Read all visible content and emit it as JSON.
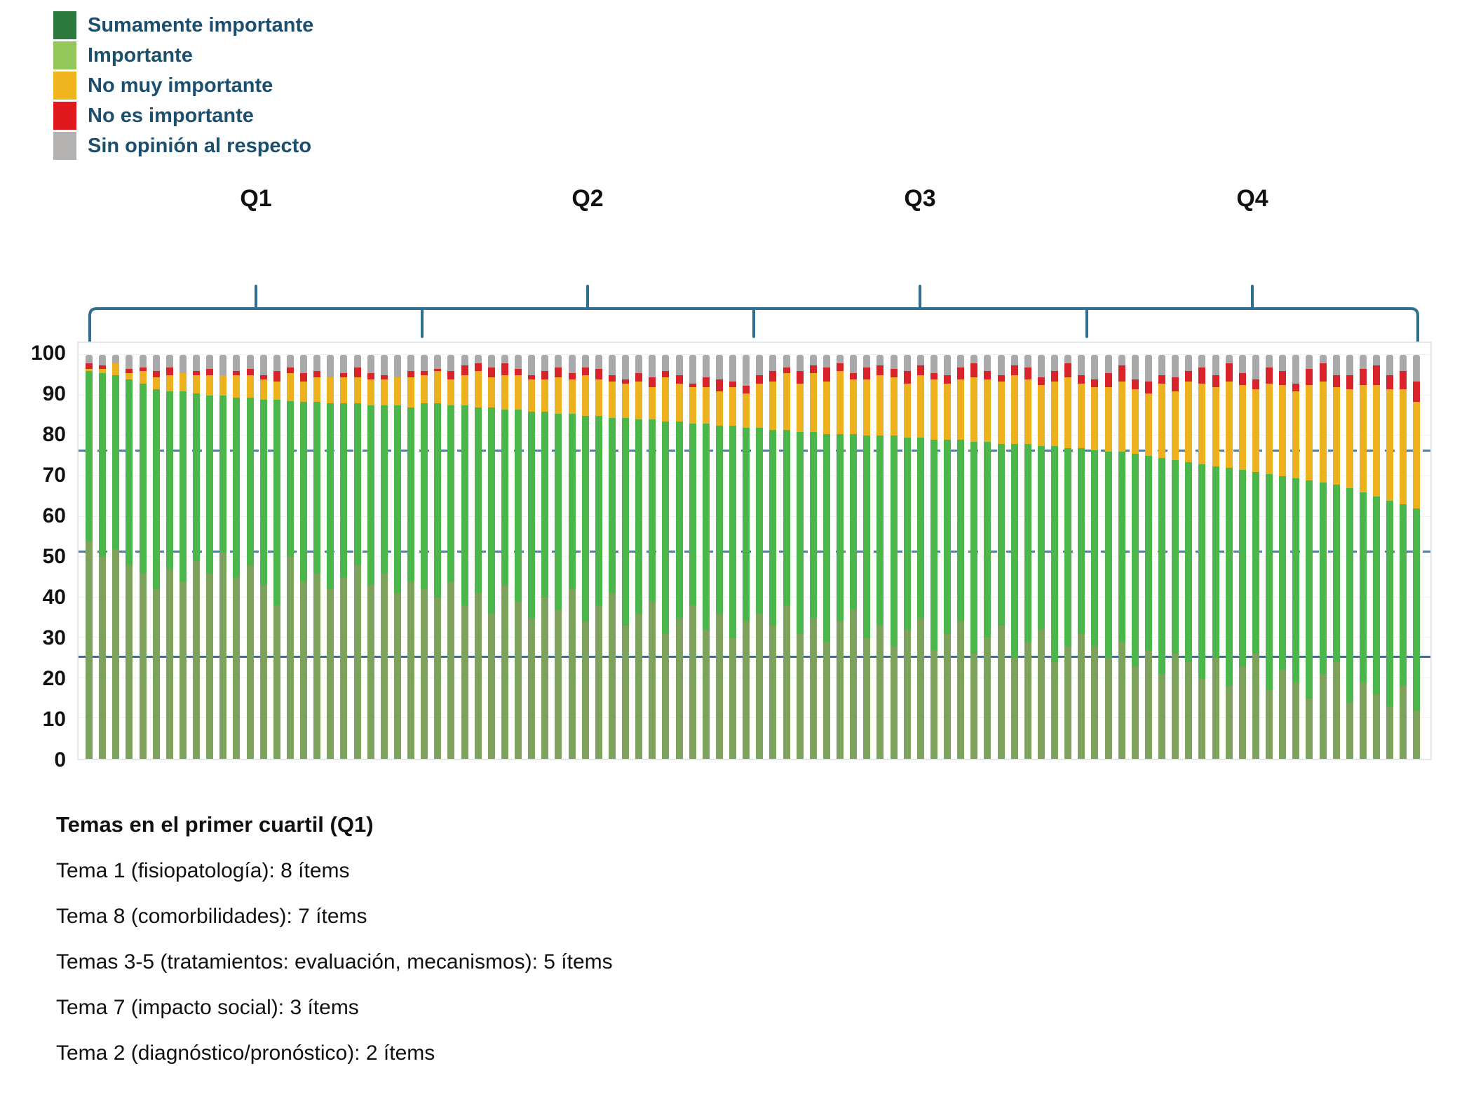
{
  "legend": {
    "items": [
      {
        "label": "Sumamente importante",
        "color": "#2c7a3d"
      },
      {
        "label": "Importante",
        "color": "#94c75a"
      },
      {
        "label": "No muy importante",
        "color": "#f0b41e"
      },
      {
        "label": "No es importante",
        "color": "#e1191f"
      },
      {
        "label": "Sin opinión al respecto",
        "color": "#b5b2b2"
      }
    ],
    "text_color": "#1c4e6e"
  },
  "quartile_labels": [
    "Q1",
    "Q2",
    "Q3",
    "Q4"
  ],
  "y_axis": {
    "ticks": [
      100,
      90,
      80,
      70,
      60,
      50,
      40,
      30,
      20,
      10,
      0
    ]
  },
  "chart_data": {
    "type": "bar",
    "stacked": true,
    "title": "",
    "xlabel": "",
    "ylabel": "",
    "ylim": [
      0,
      100
    ],
    "grid": true,
    "legend_position": "top-left",
    "series_order": [
      "Sumamente importante",
      "Importante",
      "No muy importante",
      "No es importante",
      "Sin opinión al respecto"
    ],
    "bar_colors": {
      "Sumamente importante": "#7da25b",
      "Importante": "#4bb649",
      "No muy importante": "#edb11f",
      "No es importante": "#d8232a",
      "Sin opinión al respecto": "#a9a9a9"
    },
    "reference_lines": [
      {
        "value": 76,
        "style": "dashed",
        "color": "#3a85c4"
      },
      {
        "value": 51,
        "style": "dashed",
        "color": "#3a85c4"
      },
      {
        "value": 25,
        "style": "solid",
        "color": "#2e6fb4"
      }
    ],
    "quartiles": [
      {
        "label": "Q1",
        "first_bar": 1,
        "last_bar": 25
      },
      {
        "label": "Q2",
        "first_bar": 26,
        "last_bar": 50
      },
      {
        "label": "Q3",
        "first_bar": 51,
        "last_bar": 75
      },
      {
        "label": "Q4",
        "first_bar": 76,
        "last_bar": 100
      }
    ],
    "bars": [
      [
        54,
        42,
        0.5,
        1.5,
        2
      ],
      [
        50,
        45.5,
        1,
        1,
        2.5
      ],
      [
        52,
        43,
        3,
        0,
        2
      ],
      [
        48,
        46,
        1.5,
        1,
        3.5
      ],
      [
        46,
        47,
        3,
        1,
        3
      ],
      [
        42,
        49.5,
        3,
        1.5,
        4
      ],
      [
        47,
        44,
        4,
        2,
        3
      ],
      [
        44,
        47,
        4.5,
        0,
        4.5
      ],
      [
        49,
        41.5,
        4.5,
        1,
        4
      ],
      [
        46,
        44,
        5,
        1.5,
        3.5
      ],
      [
        51,
        39,
        5,
        0,
        5
      ],
      [
        45,
        44.5,
        5.5,
        1,
        4
      ],
      [
        48,
        41.5,
        5.5,
        1.5,
        3.5
      ],
      [
        43,
        46,
        5,
        1,
        5
      ],
      [
        38,
        51,
        4.5,
        2.5,
        4
      ],
      [
        50,
        38.5,
        7,
        1.5,
        3
      ],
      [
        44,
        44.5,
        5,
        2,
        4.5
      ],
      [
        46,
        42.5,
        6,
        1.5,
        4
      ],
      [
        42,
        46,
        6.5,
        0,
        5.5
      ],
      [
        45,
        43,
        6.5,
        1,
        4.5
      ],
      [
        48,
        40,
        6.5,
        2.5,
        3
      ],
      [
        43,
        44.5,
        6.5,
        1.5,
        4.5
      ],
      [
        46,
        41.5,
        6.5,
        1,
        5
      ],
      [
        41,
        46.5,
        7,
        0,
        5.5
      ],
      [
        44,
        43,
        7.5,
        1.5,
        4
      ],
      [
        42,
        46,
        7,
        1,
        4
      ],
      [
        40,
        48,
        8,
        0.5,
        3.5
      ],
      [
        44,
        43.5,
        6.5,
        2,
        4
      ],
      [
        38,
        49.5,
        7.5,
        2.5,
        2.5
      ],
      [
        41,
        46,
        9,
        2,
        2
      ],
      [
        36,
        51,
        7.5,
        2.5,
        3
      ],
      [
        43,
        43.5,
        8.5,
        3,
        2
      ],
      [
        39,
        47.5,
        8.5,
        1.5,
        3.5
      ],
      [
        35,
        51,
        8,
        1,
        5
      ],
      [
        40,
        46,
        8,
        2,
        4
      ],
      [
        37,
        48.5,
        9,
        2.5,
        3
      ],
      [
        42,
        43.5,
        8.5,
        1.5,
        4.5
      ],
      [
        34,
        51,
        10,
        2,
        3
      ],
      [
        38,
        47,
        9,
        2.5,
        3.5
      ],
      [
        41,
        43.5,
        9,
        1.5,
        5
      ],
      [
        33,
        51.5,
        8.5,
        1,
        6
      ],
      [
        36,
        48,
        9.5,
        2,
        4.5
      ],
      [
        39,
        45,
        8,
        2.5,
        5.5
      ],
      [
        31,
        52.5,
        11,
        1.5,
        4
      ],
      [
        35,
        48.5,
        9.5,
        2,
        5
      ],
      [
        38,
        45,
        9,
        1,
        7
      ],
      [
        32,
        51,
        9,
        2.5,
        5.5
      ],
      [
        36,
        46.5,
        8.5,
        3,
        6
      ],
      [
        30,
        52.5,
        9.5,
        1.5,
        6.5
      ],
      [
        34,
        48,
        8.5,
        2,
        7.5
      ],
      [
        36,
        46,
        11,
        2,
        5
      ],
      [
        33,
        48.5,
        12,
        2.5,
        4
      ],
      [
        38,
        43.5,
        14,
        1.5,
        3
      ],
      [
        31,
        50,
        12,
        3,
        4
      ],
      [
        35,
        46,
        14.5,
        2,
        2.5
      ],
      [
        29,
        51.5,
        13,
        3.5,
        3
      ],
      [
        34,
        46.5,
        15.5,
        2,
        2
      ],
      [
        37,
        43.5,
        13.5,
        1.5,
        4.5
      ],
      [
        30,
        50,
        14,
        3,
        3
      ],
      [
        33,
        47,
        15,
        2.5,
        2.5
      ],
      [
        28,
        52,
        14.5,
        2,
        3.5
      ],
      [
        32,
        47.5,
        13.5,
        3,
        4
      ],
      [
        35,
        44.5,
        15.5,
        2.5,
        2.5
      ],
      [
        27,
        52,
        15,
        1.5,
        4.5
      ],
      [
        31,
        48,
        14,
        2,
        5
      ],
      [
        34,
        45,
        15,
        3,
        3
      ],
      [
        26,
        52.5,
        16,
        3.5,
        2
      ],
      [
        30,
        48.5,
        15.5,
        2,
        4
      ],
      [
        33,
        45,
        15.5,
        1.5,
        5
      ],
      [
        25,
        53,
        17,
        2.5,
        2.5
      ],
      [
        29,
        49,
        16,
        3,
        3
      ],
      [
        32,
        45.5,
        15,
        2,
        5.5
      ],
      [
        24,
        53.5,
        16,
        2.5,
        4
      ],
      [
        28,
        49,
        17.5,
        3.5,
        2
      ],
      [
        31,
        46,
        16,
        2,
        5
      ],
      [
        28,
        48.5,
        15.5,
        2,
        6
      ],
      [
        25,
        51,
        16,
        3.5,
        4.5
      ],
      [
        29,
        47,
        17.5,
        4,
        2.5
      ],
      [
        23,
        52.5,
        16,
        2.5,
        6
      ],
      [
        27,
        48,
        15.5,
        3,
        6.5
      ],
      [
        21,
        53.5,
        18.5,
        2,
        5
      ],
      [
        26,
        48,
        17,
        3.5,
        5.5
      ],
      [
        24,
        49.5,
        20,
        2.5,
        4
      ],
      [
        20,
        53,
        20,
        4,
        3
      ],
      [
        25,
        47.5,
        19.5,
        3,
        5
      ],
      [
        18,
        54,
        21.5,
        4.5,
        2
      ],
      [
        23,
        48.5,
        21,
        3,
        4.5
      ],
      [
        26,
        45,
        20.5,
        2.5,
        6
      ],
      [
        17,
        53.5,
        22.5,
        4,
        3
      ],
      [
        22,
        48,
        22.5,
        3.5,
        4
      ],
      [
        19,
        50.5,
        21.5,
        2,
        7
      ],
      [
        15,
        54,
        23.5,
        4,
        3.5
      ],
      [
        21,
        47.5,
        25,
        4.5,
        2
      ],
      [
        24,
        44,
        24,
        3,
        5
      ],
      [
        14,
        53,
        24.5,
        3.5,
        5
      ],
      [
        19,
        47,
        26.5,
        4,
        3.5
      ],
      [
        16,
        49,
        27.5,
        5,
        2.5
      ],
      [
        13,
        51,
        27.5,
        3.5,
        5
      ],
      [
        18,
        45,
        28.5,
        4.5,
        4
      ],
      [
        12,
        50,
        26.5,
        5,
        6.5
      ]
    ]
  },
  "footnote": {
    "title": "Temas en el primer cuartil (Q1)",
    "lines": [
      "Tema 1 (fisiopatología): 8 ítems",
      "Tema 8 (comorbilidades): 7 ítems",
      "Temas 3-5 (tratamientos: evaluación, mecanismos): 5 ítems",
      "Tema 7 (impacto social): 3 ítems",
      "Tema 2 (diagnóstico/pronóstico): 2 ítems"
    ]
  }
}
